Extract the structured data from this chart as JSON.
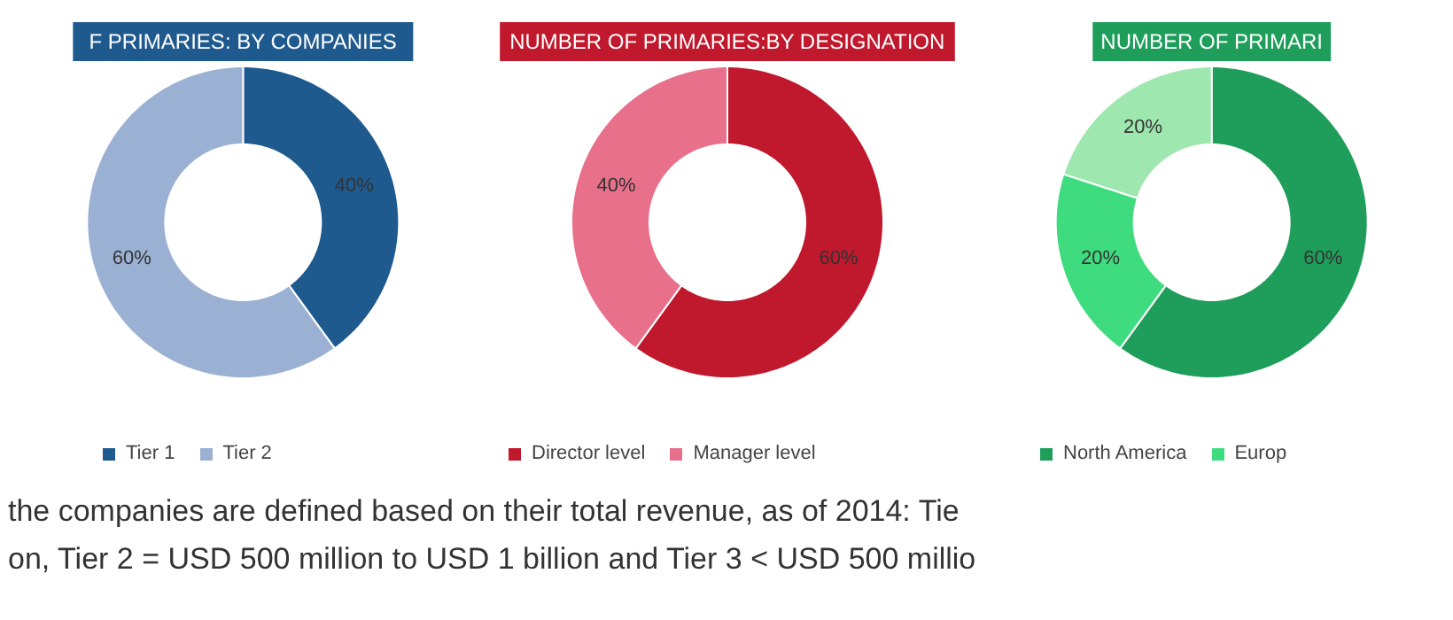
{
  "chart_data": [
    {
      "type": "donut",
      "title": "F PRIMARIES: BY COMPANIES",
      "categories": [
        "Tier 1",
        "Tier 2"
      ],
      "values": [
        40,
        60
      ],
      "colors": [
        "#1f5a8f",
        "#9bb1d4"
      ],
      "value_labels": [
        "40%",
        "60%"
      ],
      "legend": "bottom",
      "annotations": [
        "the companies are defined based on their total revenue, as of 2014: Tie",
        "on, Tier 2 = USD 500 million to USD 1 billion and Tier 3 < USD 500 millio"
      ]
    },
    {
      "type": "donut",
      "title": "NUMBER OF PRIMARIES:BY DESIGNATION",
      "categories": [
        "Director level",
        "Manager level"
      ],
      "values": [
        60,
        40
      ],
      "colors": [
        "#c0182c",
        "#e8708a"
      ],
      "value_labels": [
        "60%",
        "40%"
      ],
      "legend": "bottom"
    },
    {
      "type": "donut",
      "title": "NUMBER OF PRIMARI",
      "categories": [
        "North America",
        "Europ",
        null
      ],
      "values": [
        60,
        20,
        20
      ],
      "colors": [
        "#1e9e5a",
        "#3fdc7f",
        "#9ee8b0"
      ],
      "value_labels": [
        "60%",
        "20%",
        "20%"
      ],
      "legend": "bottom"
    }
  ]
}
